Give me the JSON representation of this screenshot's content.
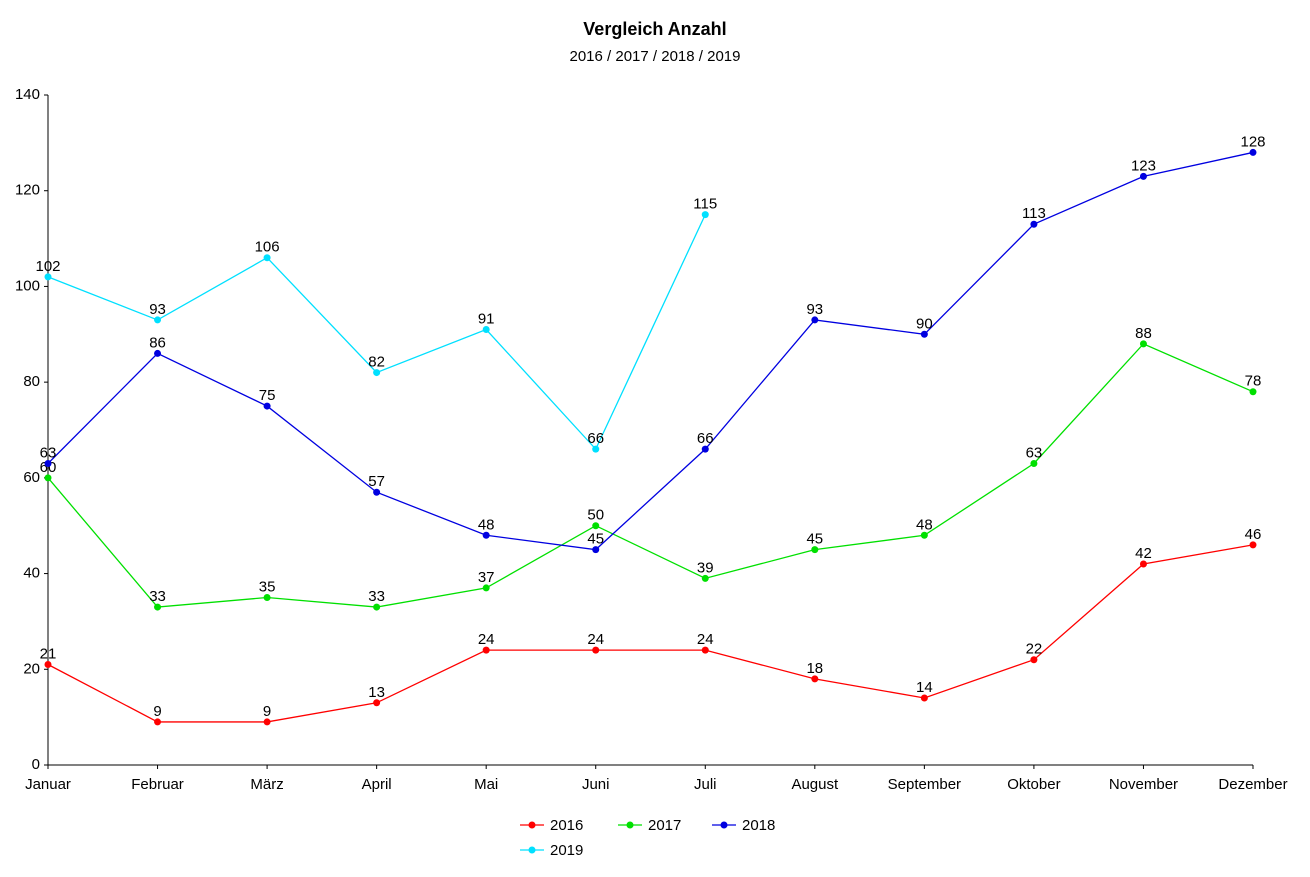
{
  "chart_data": {
    "type": "line",
    "title": "Vergleich Anzahl",
    "subtitle": "2016 / 2017 / 2018 / 2019",
    "categories": [
      "Januar",
      "Februar",
      "März",
      "April",
      "Mai",
      "Juni",
      "Juli",
      "August",
      "September",
      "Oktober",
      "November",
      "Dezember"
    ],
    "series": [
      {
        "name": "2016",
        "color": "#ff0000",
        "values": [
          21,
          9,
          9,
          13,
          24,
          24,
          24,
          18,
          14,
          22,
          42,
          46
        ]
      },
      {
        "name": "2017",
        "color": "#00e000",
        "values": [
          60,
          33,
          35,
          33,
          37,
          50,
          39,
          45,
          48,
          63,
          88,
          78
        ]
      },
      {
        "name": "2018",
        "color": "#0000e0",
        "values": [
          63,
          86,
          75,
          57,
          48,
          45,
          66,
          93,
          90,
          113,
          123,
          128
        ]
      },
      {
        "name": "2019",
        "color": "#00e0ff",
        "values": [
          102,
          93,
          106,
          82,
          91,
          66,
          115,
          null,
          null,
          null,
          null,
          null
        ]
      }
    ],
    "ylim": [
      0,
      140
    ],
    "yticks": [
      0,
      20,
      40,
      60,
      80,
      100,
      120,
      140
    ],
    "grid": false,
    "legend": "bottom"
  }
}
